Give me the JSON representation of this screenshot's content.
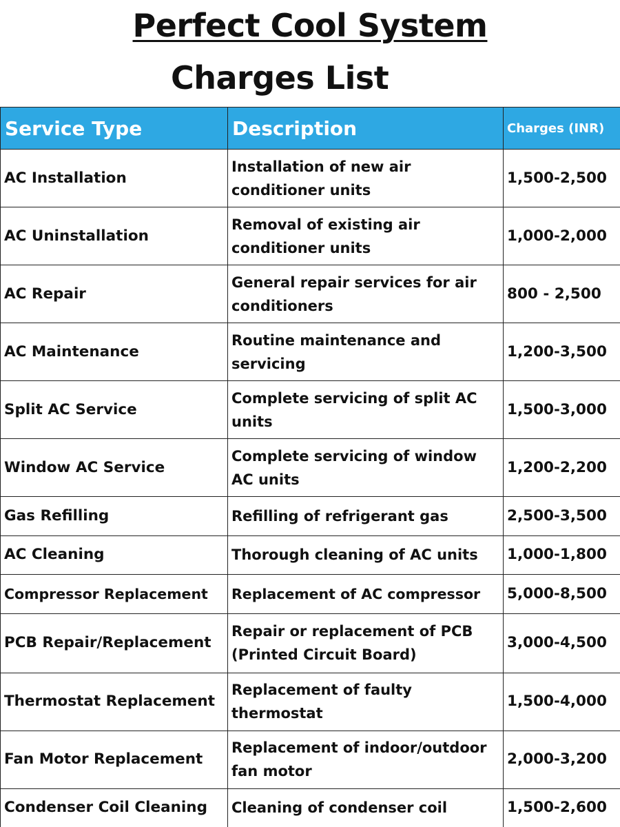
{
  "header": {
    "title": "Perfect Cool System",
    "subtitle": "Charges List"
  },
  "table": {
    "columns": [
      "Service Type",
      "Description",
      "Charges (INR)"
    ],
    "rows": [
      {
        "service": "AC Installation",
        "description": "Installation of new air conditioner units",
        "charges": "1,500-2,500"
      },
      {
        "service": "AC Uninstallation",
        "description": "Removal of existing air conditioner units",
        "charges": "1,000-2,000"
      },
      {
        "service": "AC Repair",
        "description": "General repair services for air conditioners",
        "charges": "800 - 2,500"
      },
      {
        "service": "AC Maintenance",
        "description": "Routine maintenance and servicing",
        "charges": "1,200-3,500"
      },
      {
        "service": "Split AC Service",
        "description": "Complete servicing of split AC units",
        "charges": "1,500-3,000"
      },
      {
        "service": "Window AC Service",
        "description": "Complete servicing of window AC units",
        "charges": "1,200-2,200"
      },
      {
        "service": "Gas Refilling",
        "description": "Refilling of refrigerant gas",
        "charges": "2,500-3,500"
      },
      {
        "service": "AC Cleaning",
        "description": "Thorough cleaning of AC units",
        "charges": "1,000-1,800"
      },
      {
        "service": "Compressor Replacement",
        "description": "Replacement of AC compressor",
        "charges": "5,000-8,500"
      },
      {
        "service": "PCB Repair/Replacement",
        "description": "Repair or replacement of PCB (Printed Circuit Board)",
        "charges": "3,000-4,500"
      },
      {
        "service": "Thermostat Replacement",
        "description": "Replacement of faulty thermostat",
        "charges": "1,500-4,000"
      },
      {
        "service": "Fan Motor Replacement",
        "description": "Replacement of indoor/outdoor fan motor",
        "charges": "2,000-3,200"
      },
      {
        "service": "Condenser Coil Cleaning",
        "description": "Cleaning of condenser coil",
        "charges": "1,500-2,600"
      }
    ]
  },
  "colors": {
    "header_bg": "#2ea8e3",
    "header_text": "#ffffff",
    "border": "#222222"
  }
}
